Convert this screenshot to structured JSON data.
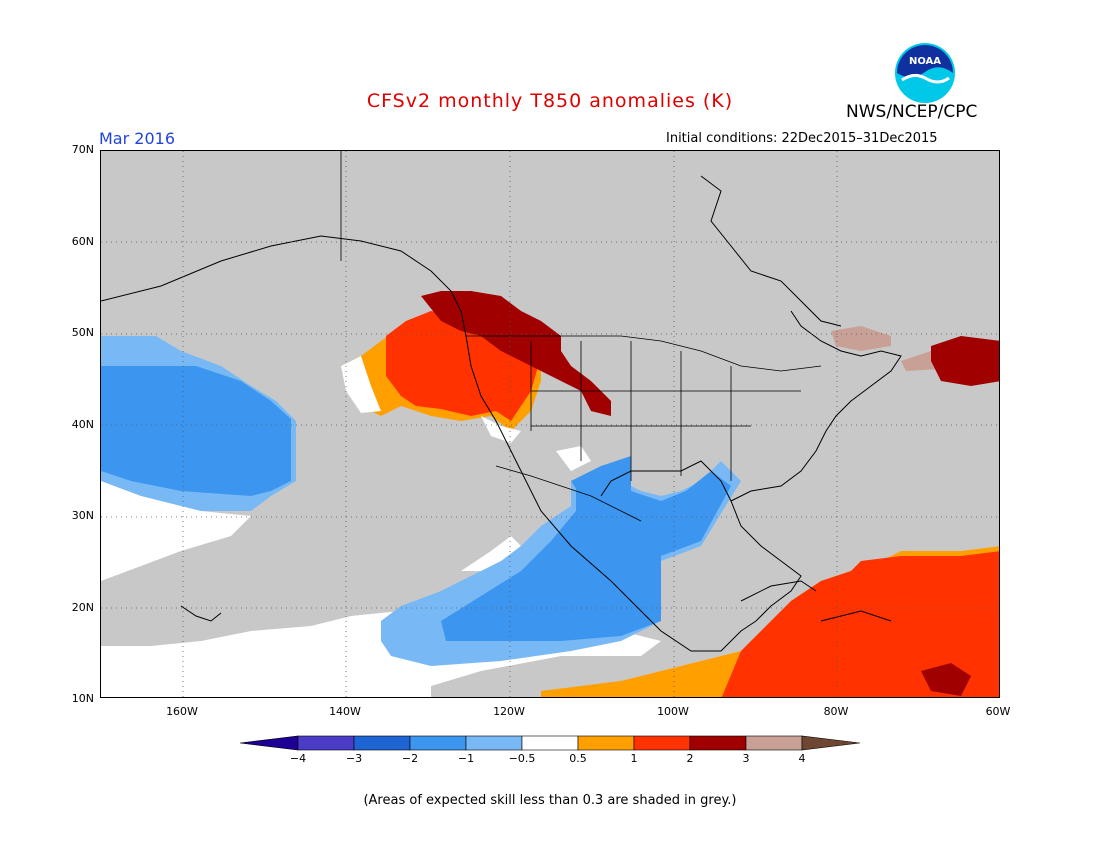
{
  "title": "CFSv2 monthly T850 anomalies (K)",
  "org": "NWS/NCEP/CPC",
  "period": "Mar 2016",
  "initial_conditions": "Initial conditions: 22Dec2015–31Dec2015",
  "lat_labels": [
    "70N",
    "60N",
    "50N",
    "40N",
    "30N",
    "20N",
    "10N"
  ],
  "lon_labels": [
    "160W",
    "140W",
    "120W",
    "100W",
    "80W",
    "60W"
  ],
  "colorbar": {
    "labels": [
      "−4",
      "−3",
      "−2",
      "−1",
      "−0.5",
      "0.5",
      "1",
      "2",
      "3",
      "4"
    ],
    "colors": [
      "#1e0096",
      "#4b3cc8",
      "#1e64d2",
      "#3c96f0",
      "#78b9f5",
      "#ffffff",
      "#ffa000",
      "#ff3200",
      "#a00000",
      "#c8a096",
      "#6e4632"
    ]
  },
  "anomaly_colors": {
    "grey": "#c8c8c8",
    "white": "#ffffff",
    "light_blue": "#78b9f5",
    "blue": "#3c96f0",
    "orange": "#ffa000",
    "red": "#ff3200",
    "dark_red": "#a00000",
    "tan": "#c8a096"
  },
  "footnote": "(Areas of expected skill less than 0.3 are shaded in grey.)",
  "logo_text": "NOAA"
}
